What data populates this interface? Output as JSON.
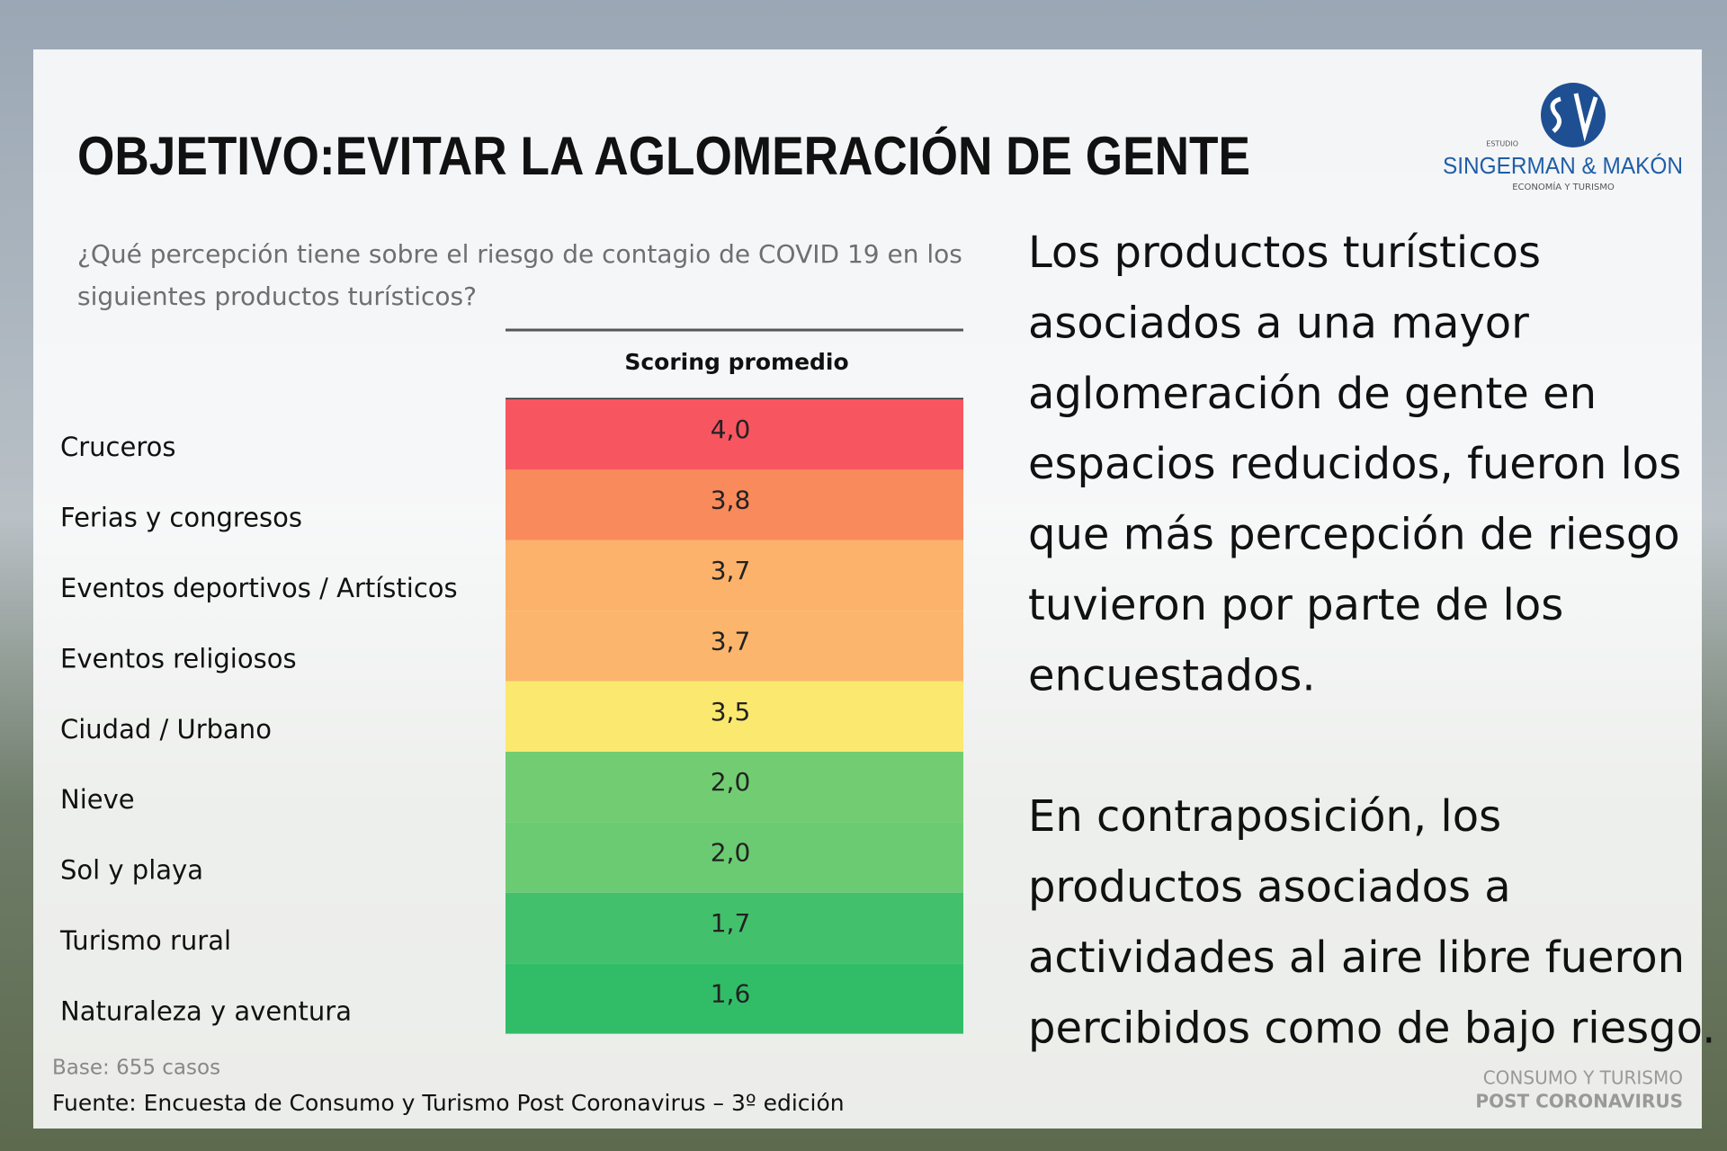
{
  "header": {
    "title": "OBJETIVO:EVITAR LA AGLOMERACIÓN DE GENTE"
  },
  "logo": {
    "prefix": "ESTUDIO",
    "name": "SINGERMAN & MAKÓN",
    "tagline": "ECONOMÍA Y TURISMO"
  },
  "question": [
    "¿Qué percepción tiene sobre el riesgo de contagio de COVID 19 en los",
    "siguientes productos turísticos?"
  ],
  "table": {
    "header": "Scoring promedio",
    "rows": [
      {
        "label": "Cruceros",
        "value": "4,0",
        "color": "#f75560"
      },
      {
        "label": "Ferias y congresos",
        "value": "3,8",
        "color": "#f98a5b"
      },
      {
        "label": "Eventos deportivos / Artísticos",
        "value": "3,7",
        "color": "#fcb26b"
      },
      {
        "label": "Eventos religiosos",
        "value": "3,7",
        "color": "#fcb56c"
      },
      {
        "label": "Ciudad / Urbano",
        "value": "3,5",
        "color": "#fbe96f"
      },
      {
        "label": "Nieve",
        "value": "2,0",
        "color": "#72cd72"
      },
      {
        "label": "Sol y playa",
        "value": "2,0",
        "color": "#6bcb72"
      },
      {
        "label": "Turismo rural",
        "value": "1,7",
        "color": "#43c06b"
      },
      {
        "label": "Naturaleza y aventura",
        "value": "1,6",
        "color": "#31bd68"
      }
    ]
  },
  "base": "Base: 655 casos",
  "source": "Fuente: Encuesta de Consumo y Turismo Post Coronavirus – 3º edición",
  "body": [
    [
      "Los productos turísticos",
      "asociados a una mayor",
      "aglomeración de gente en",
      "espacios reducidos, fueron los",
      "que más percepción de riesgo",
      "tuvieron por parte de los",
      "encuestados."
    ],
    [
      "En contraposición, los",
      "productos asociados a",
      "actividades al aire libre fueron",
      "percibidos como de bajo riesgo."
    ]
  ],
  "footer_brand": [
    "CONSUMO Y TURISMO",
    "POST CORONAVIRUS"
  ]
}
